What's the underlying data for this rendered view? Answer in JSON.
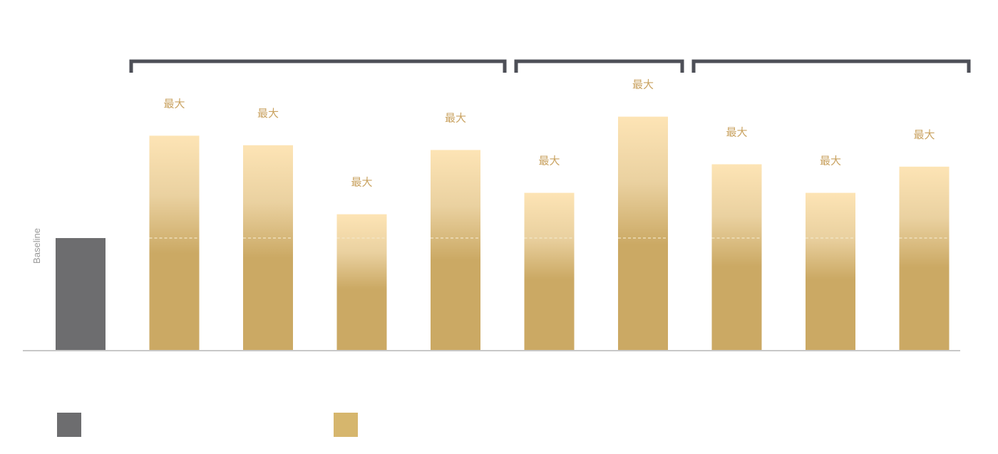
{
  "chart_data": {
    "type": "bar",
    "ylabel": "Baseline",
    "ylim": [
      0,
      100
    ],
    "baseline_value": 47,
    "baseline_label": "",
    "series": [
      {
        "name": "",
        "color": "#6d6d6f",
        "values": [
          47
        ]
      },
      {
        "name": "",
        "color": "#cba964",
        "values": [
          90,
          86,
          57,
          84,
          66,
          98,
          78,
          66,
          77
        ],
        "data_labels": [
          "最大",
          "最大",
          "最大",
          "最大",
          "最大",
          "最大",
          "最大",
          "最大",
          "最大"
        ]
      }
    ],
    "groups": [
      {
        "label": "",
        "bars": [
          1,
          2,
          3,
          4
        ]
      },
      {
        "label": "",
        "bars": [
          5,
          6
        ]
      },
      {
        "label": "",
        "bars": [
          7,
          8,
          9
        ]
      }
    ],
    "legend": {
      "position": "bottom-left",
      "items": [
        {
          "label": "",
          "color": "#6d6d6f"
        },
        {
          "label": "",
          "color": "#d6b66d"
        }
      ]
    },
    "colors": {
      "baseline_bar": "#6d6d6f",
      "bar_base": "#cba964",
      "bar_top": "#fde4b5",
      "label_text": "#c9a260",
      "axis_line": "#c8c8c8",
      "group_bracket": "#4d4f57",
      "ylabel_text": "#9a9a9a",
      "dashed_line": "#f3e6c8"
    }
  }
}
